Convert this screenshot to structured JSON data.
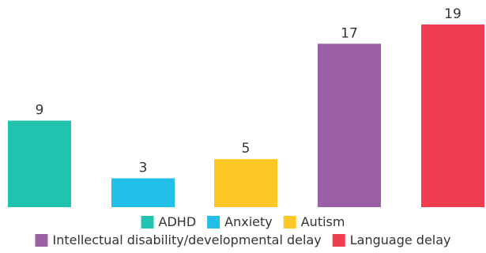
{
  "chart_data": {
    "type": "bar",
    "categories": [
      "ADHD",
      "Anxiety",
      "Autism",
      "Intellectual disability/developmental delay",
      "Language delay"
    ],
    "values": [
      9,
      3,
      5,
      17,
      19
    ],
    "colors": [
      "#22c3ae",
      "#22bfe8",
      "#fdc824",
      "#9b5fa8",
      "#f03d50"
    ],
    "ylim": [
      0,
      19
    ],
    "grid": false,
    "legend_position": "bottom",
    "data_labels": true
  }
}
